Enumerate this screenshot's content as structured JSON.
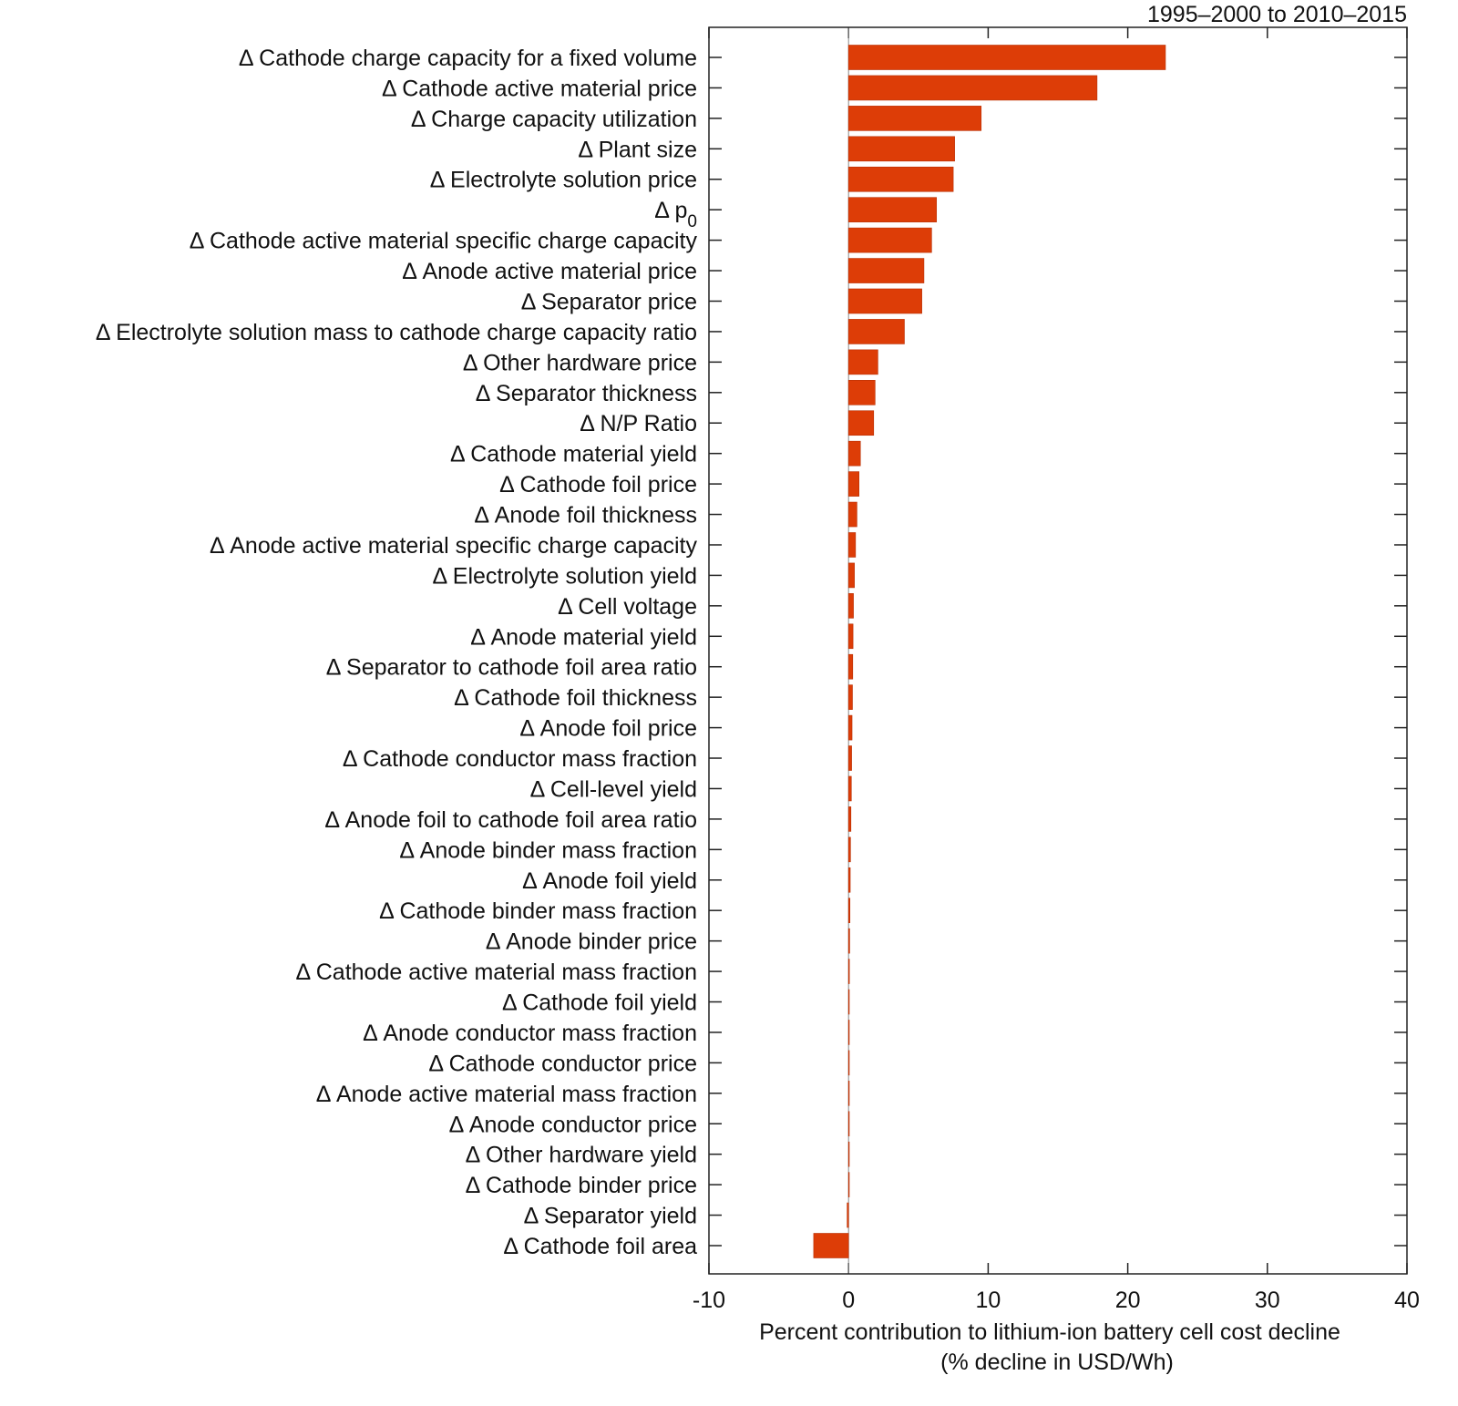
{
  "chart_data": {
    "type": "bar",
    "orientation": "horizontal",
    "title": "1995–2000 to 2010–2015",
    "xlabel": [
      "Percent contribution to lithium-ion battery cell cost decline",
      "(% decline in USD/Wh)"
    ],
    "ylabel": "",
    "xlim": [
      -10,
      40
    ],
    "xticks": [
      "-10",
      "0",
      "10",
      "20",
      "30",
      "40"
    ],
    "grid": false,
    "bar_color": "#dd3d07",
    "categories": [
      {
        "label": "Δ Cathode charge capacity for a fixed volume",
        "value": 22.7
      },
      {
        "label": "Δ Cathode active material price",
        "value": 17.8
      },
      {
        "label": "Δ Charge capacity utilization",
        "value": 9.5
      },
      {
        "label": "Δ Plant size",
        "value": 7.6
      },
      {
        "label": "Δ Electrolyte solution price",
        "value": 7.5
      },
      {
        "label": "Δ p",
        "sub": "0",
        "value": 6.3
      },
      {
        "label": "Δ Cathode active material specific charge capacity",
        "value": 5.95
      },
      {
        "label": "Δ Anode active material price",
        "value": 5.4
      },
      {
        "label": "Δ Separator price",
        "value": 5.25
      },
      {
        "label": "Δ Electrolyte solution mass to cathode charge capacity ratio",
        "value": 4.0
      },
      {
        "label": "Δ Other hardware price",
        "value": 2.1
      },
      {
        "label": "Δ Separator thickness",
        "value": 1.9
      },
      {
        "label": "Δ N/P Ratio",
        "value": 1.8
      },
      {
        "label": "Δ Cathode material yield",
        "value": 0.85
      },
      {
        "label": "Δ Cathode foil price",
        "value": 0.75
      },
      {
        "label": "Δ Anode foil thickness",
        "value": 0.6
      },
      {
        "label": "Δ Anode active material specific charge capacity",
        "value": 0.5
      },
      {
        "label": "Δ Electrolyte solution yield",
        "value": 0.42
      },
      {
        "label": "Δ Cell voltage",
        "value": 0.35
      },
      {
        "label": "Δ Anode material yield",
        "value": 0.32
      },
      {
        "label": "Δ Separator to cathode foil area ratio",
        "value": 0.3
      },
      {
        "label": "Δ Cathode foil thickness",
        "value": 0.28
      },
      {
        "label": "Δ Anode foil price",
        "value": 0.25
      },
      {
        "label": "Δ Cathode conductor mass fraction",
        "value": 0.22
      },
      {
        "label": "Δ Cell-level yield",
        "value": 0.2
      },
      {
        "label": "Δ Anode foil to cathode foil area ratio",
        "value": 0.17
      },
      {
        "label": "Δ Anode binder mass fraction",
        "value": 0.14
      },
      {
        "label": "Δ Anode foil yield",
        "value": 0.12
      },
      {
        "label": "Δ Cathode binder mass fraction",
        "value": 0.1
      },
      {
        "label": "Δ Anode binder price",
        "value": 0.08
      },
      {
        "label": "Δ Cathode active material mass fraction",
        "value": 0.06
      },
      {
        "label": "Δ Cathode foil yield",
        "value": 0.05
      },
      {
        "label": "Δ Anode conductor mass fraction",
        "value": 0.04
      },
      {
        "label": "Δ Cathode conductor price",
        "value": 0.03
      },
      {
        "label": "Δ Anode active material mass fraction",
        "value": 0.03
      },
      {
        "label": "Δ Anode conductor price",
        "value": 0.02
      },
      {
        "label": "Δ Other hardware yield",
        "value": 0.02
      },
      {
        "label": "Δ Cathode binder price",
        "value": 0.01
      },
      {
        "label": "Δ Separator yield",
        "value": -0.1
      },
      {
        "label": "Δ Cathode foil area",
        "value": -2.5
      }
    ]
  }
}
